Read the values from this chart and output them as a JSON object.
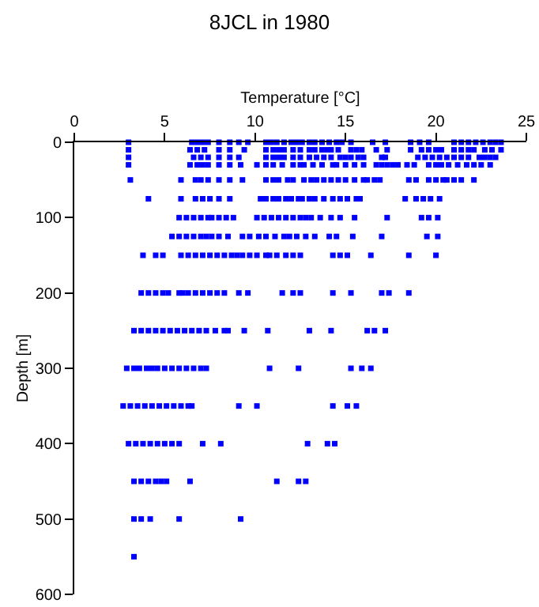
{
  "chart_data": {
    "type": "scatter",
    "title": "8JCL in 1980",
    "xlabel": "Temperature [°C]",
    "ylabel": "Depth [m]",
    "xlim": [
      0,
      25
    ],
    "xticks": [
      0,
      5,
      10,
      15,
      20,
      25
    ],
    "ylim": [
      600,
      0
    ],
    "yticks": [
      0,
      100,
      200,
      300,
      400,
      500,
      600
    ],
    "marker": "square",
    "series": [
      {
        "color": "#0000ff",
        "x": [
          3.0,
          6.5,
          6.8,
          7.1,
          7.4,
          8.0,
          8.6,
          9.1,
          9.6,
          10.6,
          10.9,
          11.2,
          11.6,
          12.0,
          12.3,
          12.6,
          13.0,
          13.3,
          13.7,
          14.1,
          14.5,
          14.8,
          15.3,
          16.5,
          17.2,
          18.6,
          19.1,
          19.6,
          21.0,
          21.4,
          21.8,
          22.2,
          22.6,
          23.0,
          23.3,
          23.6
        ],
        "values": [
          0,
          0,
          0,
          0,
          0,
          0,
          0,
          0,
          0,
          0,
          0,
          0,
          0,
          0,
          0,
          0,
          0,
          0,
          0,
          0,
          0,
          0,
          0,
          0,
          0,
          0,
          0,
          0,
          0,
          0,
          0,
          0,
          0,
          0,
          0,
          0
        ]
      },
      {
        "color": "#0000ff",
        "x": [
          3.0,
          6.4,
          6.8,
          7.2,
          8.0,
          8.6,
          9.4,
          10.6,
          11.0,
          11.3,
          11.6,
          12.1,
          12.5,
          13.0,
          13.3,
          13.7,
          14.0,
          14.2,
          14.6,
          15.3,
          15.6,
          15.9,
          16.7,
          17.3,
          18.6,
          19.2,
          19.6,
          20.0,
          20.3,
          21.0,
          21.4,
          21.8,
          22.1,
          22.7,
          23.1,
          23.6
        ],
        "values": [
          10,
          10,
          10,
          10,
          10,
          10,
          10,
          10,
          10,
          10,
          10,
          10,
          10,
          10,
          10,
          10,
          10,
          10,
          10,
          10,
          10,
          10,
          10,
          10,
          10,
          10,
          10,
          10,
          10,
          10,
          10,
          10,
          10,
          10,
          10,
          10
        ]
      },
      {
        "color": "#0000ff",
        "x": [
          3.0,
          6.6,
          7.0,
          7.4,
          8.0,
          8.6,
          9.1,
          10.6,
          11.0,
          11.3,
          11.6,
          12.1,
          12.5,
          13.0,
          13.4,
          13.8,
          14.2,
          14.7,
          15.0,
          15.3,
          15.7,
          16.0,
          17.0,
          17.2,
          19.0,
          19.4,
          19.8,
          20.2,
          20.6,
          21.0,
          21.4,
          21.8,
          22.4,
          22.7,
          23.0,
          23.3
        ],
        "values": [
          20,
          20,
          20,
          20,
          20,
          20,
          20,
          20,
          20,
          20,
          20,
          20,
          20,
          20,
          20,
          20,
          20,
          20,
          20,
          20,
          20,
          20,
          20,
          20,
          20,
          20,
          20,
          20,
          20,
          20,
          20,
          20,
          20,
          20,
          20,
          20
        ]
      },
      {
        "color": "#0000ff",
        "x": [
          3.0,
          6.4,
          6.8,
          7.1,
          7.4,
          8.0,
          8.6,
          9.2,
          10.1,
          10.6,
          11.0,
          11.5,
          12.1,
          12.5,
          12.7,
          13.2,
          13.7,
          14.3,
          14.5,
          15.0,
          15.5,
          16.0,
          16.7,
          17.0,
          17.3,
          17.6,
          17.9,
          18.4,
          18.8,
          19.6,
          20.0,
          20.3,
          20.7,
          21.2,
          21.7,
          22.1,
          22.5,
          23.0
        ],
        "values": [
          30,
          30,
          30,
          30,
          30,
          30,
          30,
          30,
          30,
          30,
          30,
          30,
          30,
          30,
          30,
          30,
          30,
          30,
          30,
          30,
          30,
          30,
          30,
          30,
          30,
          30,
          30,
          30,
          30,
          30,
          30,
          30,
          30,
          30,
          30,
          30,
          30,
          30
        ]
      },
      {
        "color": "#0000ff",
        "x": [
          3.1,
          5.9,
          6.7,
          7.0,
          7.4,
          8.0,
          8.6,
          9.3,
          10.6,
          11.0,
          11.3,
          11.8,
          12.1,
          12.7,
          13.1,
          13.4,
          13.8,
          14.2,
          14.6,
          15.0,
          15.5,
          16.0,
          16.2,
          16.6,
          16.9,
          18.5,
          18.9,
          19.6,
          20.0,
          20.4,
          20.6,
          21.0,
          21.4,
          22.1
        ],
        "values": [
          50,
          50,
          50,
          50,
          50,
          50,
          50,
          50,
          50,
          50,
          50,
          50,
          50,
          50,
          50,
          50,
          50,
          50,
          50,
          50,
          50,
          50,
          50,
          50,
          50,
          50,
          50,
          50,
          50,
          50,
          50,
          50,
          50,
          50
        ]
      },
      {
        "color": "#0000ff",
        "x": [
          4.1,
          5.9,
          6.7,
          7.1,
          7.5,
          8.0,
          8.6,
          10.3,
          10.6,
          11.0,
          11.3,
          11.7,
          12.0,
          12.4,
          12.6,
          13.0,
          13.3,
          13.8,
          14.3,
          14.7,
          15.1,
          15.6,
          15.8,
          18.3,
          18.9,
          19.3,
          19.7,
          20.2
        ],
        "values": [
          75,
          75,
          75,
          75,
          75,
          75,
          75,
          75,
          75,
          75,
          75,
          75,
          75,
          75,
          75,
          75,
          75,
          75,
          75,
          75,
          75,
          75,
          75,
          75,
          75,
          75,
          75,
          75
        ]
      },
      {
        "color": "#0000ff",
        "x": [
          5.8,
          6.2,
          6.6,
          7.0,
          7.4,
          7.6,
          8.0,
          8.4,
          8.8,
          10.1,
          10.5,
          10.9,
          11.3,
          11.7,
          12.1,
          12.5,
          12.8,
          13.1,
          13.6,
          14.2,
          14.7,
          15.5,
          17.3,
          19.2,
          19.6,
          20.1
        ],
        "values": [
          100,
          100,
          100,
          100,
          100,
          100,
          100,
          100,
          100,
          100,
          100,
          100,
          100,
          100,
          100,
          100,
          100,
          100,
          100,
          100,
          100,
          100,
          100,
          100,
          100,
          100
        ]
      },
      {
        "color": "#0000ff",
        "x": [
          5.4,
          5.8,
          6.2,
          6.6,
          7.0,
          7.3,
          7.6,
          8.0,
          8.5,
          9.3,
          9.7,
          10.2,
          10.6,
          11.1,
          11.6,
          11.9,
          12.3,
          12.8,
          13.3,
          14.1,
          14.5,
          15.4,
          17.0,
          19.5,
          20.1
        ],
        "values": [
          125,
          125,
          125,
          125,
          125,
          125,
          125,
          125,
          125,
          125,
          125,
          125,
          125,
          125,
          125,
          125,
          125,
          125,
          125,
          125,
          125,
          125,
          125,
          125,
          125
        ]
      },
      {
        "color": "#0000ff",
        "x": [
          3.8,
          4.5,
          4.9,
          5.9,
          6.3,
          6.7,
          7.1,
          7.5,
          7.9,
          8.3,
          8.7,
          9.0,
          9.3,
          9.7,
          10.1,
          10.6,
          10.8,
          11.2,
          11.7,
          12.1,
          12.5,
          14.3,
          14.7,
          15.1,
          16.4,
          18.5,
          20.0
        ],
        "values": [
          150,
          150,
          150,
          150,
          150,
          150,
          150,
          150,
          150,
          150,
          150,
          150,
          150,
          150,
          150,
          150,
          150,
          150,
          150,
          150,
          150,
          150,
          150,
          150,
          150,
          150,
          150
        ]
      },
      {
        "color": "#0000ff",
        "x": [
          3.7,
          4.1,
          4.5,
          4.9,
          5.2,
          5.8,
          6.0,
          6.3,
          6.7,
          7.1,
          7.5,
          7.9,
          8.3,
          9.1,
          9.6,
          11.5,
          12.1,
          12.5,
          14.3,
          15.3,
          17.0,
          17.4,
          18.5
        ],
        "values": [
          200,
          200,
          200,
          200,
          200,
          200,
          200,
          200,
          200,
          200,
          200,
          200,
          200,
          200,
          200,
          200,
          200,
          200,
          200,
          200,
          200,
          200,
          200
        ]
      },
      {
        "color": "#0000ff",
        "x": [
          3.3,
          3.7,
          4.1,
          4.5,
          4.9,
          5.3,
          5.7,
          6.1,
          6.5,
          6.9,
          7.3,
          7.8,
          8.3,
          8.5,
          9.4,
          10.7,
          13.0,
          14.2,
          16.2,
          16.6,
          17.2
        ],
        "values": [
          250,
          250,
          250,
          250,
          250,
          250,
          250,
          250,
          250,
          250,
          250,
          250,
          250,
          250,
          250,
          250,
          250,
          250,
          250,
          250,
          250
        ]
      },
      {
        "color": "#0000ff",
        "x": [
          2.9,
          3.3,
          3.6,
          4.0,
          4.3,
          4.6,
          5.0,
          5.4,
          5.8,
          6.2,
          6.6,
          7.0,
          7.3,
          10.8,
          12.4,
          15.3,
          15.9,
          16.4
        ],
        "values": [
          300,
          300,
          300,
          300,
          300,
          300,
          300,
          300,
          300,
          300,
          300,
          300,
          300,
          300,
          300,
          300,
          300,
          300
        ]
      },
      {
        "color": "#0000ff",
        "x": [
          2.7,
          3.1,
          3.5,
          3.9,
          4.3,
          4.7,
          5.1,
          5.5,
          5.9,
          6.3,
          6.5,
          9.1,
          10.1,
          14.3,
          15.1,
          15.6
        ],
        "values": [
          350,
          350,
          350,
          350,
          350,
          350,
          350,
          350,
          350,
          350,
          350,
          350,
          350,
          350,
          350,
          350
        ]
      },
      {
        "color": "#0000ff",
        "x": [
          3.0,
          3.4,
          3.8,
          4.2,
          4.6,
          5.0,
          5.4,
          5.8,
          7.1,
          8.1,
          12.9,
          14.0,
          14.4
        ],
        "values": [
          400,
          400,
          400,
          400,
          400,
          400,
          400,
          400,
          400,
          400,
          400,
          400,
          400
        ]
      },
      {
        "color": "#0000ff",
        "x": [
          3.3,
          3.7,
          4.1,
          4.5,
          4.8,
          5.1,
          6.4,
          11.2,
          12.4,
          12.8
        ],
        "values": [
          450,
          450,
          450,
          450,
          450,
          450,
          450,
          450,
          450,
          450
        ]
      },
      {
        "color": "#0000ff",
        "x": [
          3.3,
          3.7,
          4.2,
          5.8,
          9.2
        ],
        "values": [
          500,
          500,
          500,
          500,
          500
        ]
      },
      {
        "color": "#0000ff",
        "x": [
          3.3
        ],
        "values": [
          550
        ]
      }
    ]
  }
}
